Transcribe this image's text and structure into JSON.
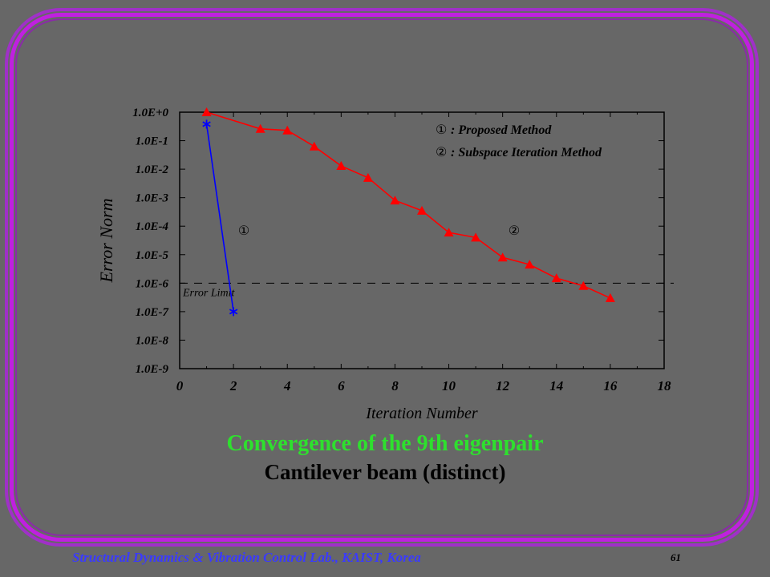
{
  "chart_data": {
    "type": "line",
    "xlabel": "Iteration Number",
    "ylabel": "Error Norm",
    "xlim": [
      0,
      18
    ],
    "ylim_exponent": [
      -9,
      0
    ],
    "log_scale_y": true,
    "x_ticks": [
      "0",
      "2",
      "4",
      "6",
      "8",
      "10",
      "12",
      "14",
      "16",
      "18"
    ],
    "y_ticks": [
      "1.0E+0",
      "1.0E-1",
      "1.0E-2",
      "1.0E-3",
      "1.0E-4",
      "1.0E-5",
      "1.0E-6",
      "1.0E-7",
      "1.0E-8",
      "1.0E-9"
    ],
    "series": [
      {
        "marker": "star",
        "color": "#0000ff",
        "label": "①",
        "x": [
          1,
          2
        ],
        "y": [
          0.38,
          1e-07
        ]
      },
      {
        "marker": "triangle",
        "color": "#ff0000",
        "label": "②",
        "x": [
          1,
          3,
          4,
          5,
          6,
          7,
          8,
          9,
          10,
          11,
          12,
          13,
          14,
          15,
          16
        ],
        "y": [
          1.0,
          0.26,
          0.23,
          0.063,
          0.013,
          0.005,
          0.0008,
          0.00035,
          6e-05,
          4e-05,
          8e-06,
          4.5e-06,
          1.5e-06,
          8e-07,
          3e-07
        ]
      }
    ],
    "reference_line": {
      "label": "Error Limit",
      "y": 1e-06,
      "style": "dashed",
      "color": "#000000"
    },
    "legend": {
      "placement": "top-right",
      "entries": [
        {
          "marker": "①",
          "text": ": Proposed Method"
        },
        {
          "marker": "②",
          "text": ": Subspace Iteration Method"
        }
      ]
    },
    "grid": false
  },
  "caption": {
    "title": "Convergence of the 9th eigenpair",
    "subtitle": "Cantilever beam (distinct)"
  },
  "footer": {
    "lab": "Structural Dynamics & Vibration Control Lab., KAIST, Korea",
    "page": "61"
  },
  "colors": {
    "background": "#676767",
    "frame": "#c020e0",
    "plot_area": "#676767",
    "title": "#2ee02e",
    "footer": "#3a3aff"
  }
}
